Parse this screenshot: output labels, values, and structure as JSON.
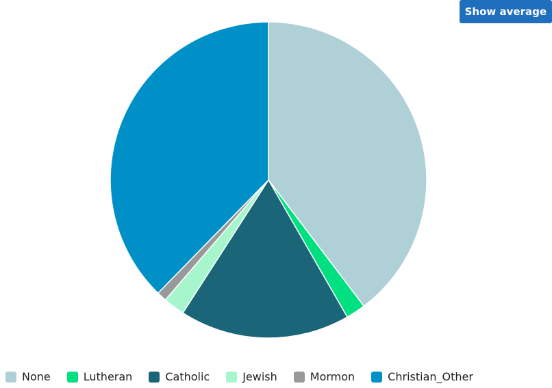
{
  "toolbar": {
    "show_average_label": "Show average"
  },
  "colors": {
    "None": "#b0d0d8",
    "Lutheran": "#00e080",
    "Catholic": "#1a6577",
    "Jewish": "#a6f5cc",
    "Mormon": "#999999",
    "Christian_Other": "#0090c8"
  },
  "chart_data": {
    "type": "pie",
    "start_angle_deg": 0,
    "direction": "clockwise",
    "legend_position": "bottom",
    "slices": [
      {
        "label": "None",
        "value": 39.7
      },
      {
        "label": "Lutheran",
        "value": 2.0
      },
      {
        "label": "Catholic",
        "value": 17.4
      },
      {
        "label": "Jewish",
        "value": 2.2
      },
      {
        "label": "Mormon",
        "value": 1.0
      },
      {
        "label": "Christian_Other",
        "value": 37.7
      }
    ]
  }
}
